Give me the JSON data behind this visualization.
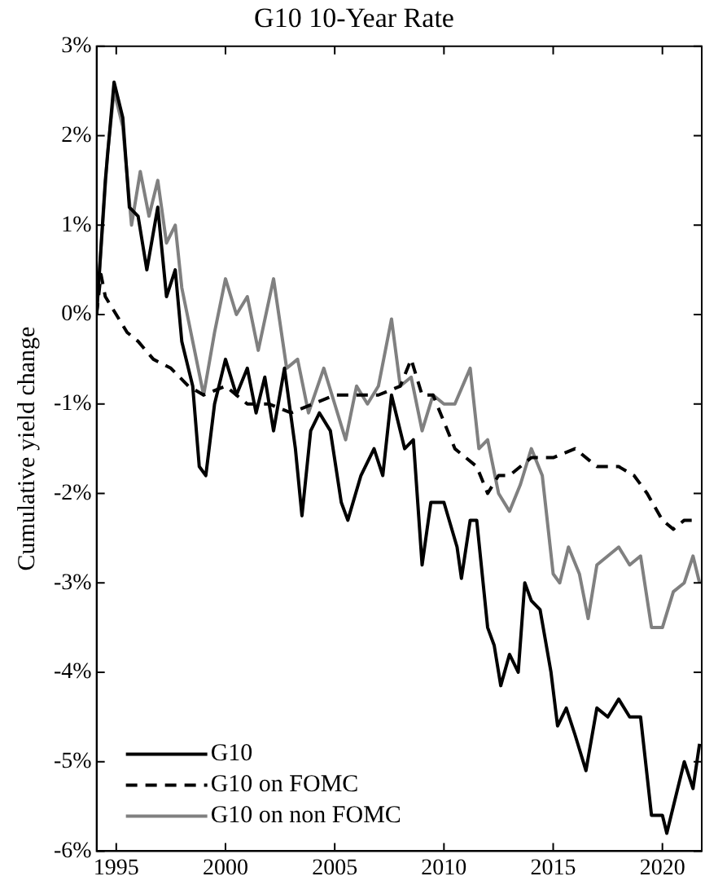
{
  "chart_data": {
    "type": "line",
    "title": "G10 10-Year Rate",
    "ylabel": "Cumulative yield change",
    "xlim": [
      1994.1,
      2021.8
    ],
    "xticks": [
      1995,
      2000,
      2005,
      2010,
      2015,
      2020
    ],
    "ylim": [
      -6,
      3
    ],
    "yticks": [
      {
        "value": -6,
        "label": "-6%"
      },
      {
        "value": -5,
        "label": "-5%"
      },
      {
        "value": -4,
        "label": "-4%"
      },
      {
        "value": -3,
        "label": "-3%"
      },
      {
        "value": -2,
        "label": "-2%"
      },
      {
        "value": -1,
        "label": "-1%"
      },
      {
        "value": 0,
        "label": "0%"
      },
      {
        "value": 1,
        "label": "1%"
      },
      {
        "value": 2,
        "label": "2%"
      },
      {
        "value": 3,
        "label": "3%"
      }
    ],
    "grid": false,
    "legend": "bottom left",
    "marker": "none",
    "series": [
      {
        "name": "G10",
        "color": "#000000",
        "line_style": "solid",
        "x": [
          1994.1,
          1994.5,
          1994.9,
          1995.3,
          1995.6,
          1996.0,
          1996.4,
          1996.9,
          1997.3,
          1997.7,
          1998.0,
          1998.5,
          1998.8,
          1999.1,
          1999.5,
          2000.0,
          2000.5,
          2001.0,
          2001.4,
          2001.8,
          2002.2,
          2002.7,
          2003.2,
          2003.5,
          2003.9,
          2004.3,
          2004.8,
          2005.3,
          2005.6,
          2006.2,
          2006.8,
          2007.2,
          2007.6,
          2008.2,
          2008.6,
          2009.0,
          2009.4,
          2010.0,
          2010.6,
          2010.8,
          2011.2,
          2011.5,
          2012.0,
          2012.3,
          2012.6,
          2013.0,
          2013.4,
          2013.7,
          2014.0,
          2014.4,
          2014.9,
          2015.2,
          2015.6,
          2016.0,
          2016.5,
          2017.0,
          2017.5,
          2018.0,
          2018.5,
          2019.0,
          2019.5,
          2020.0,
          2020.2,
          2020.5,
          2021.0,
          2021.4,
          2021.7
        ],
        "values": [
          0,
          1.5,
          2.6,
          2.2,
          1.2,
          1.1,
          0.5,
          1.2,
          0.2,
          0.5,
          -0.3,
          -0.8,
          -1.7,
          -1.8,
          -1.0,
          -0.5,
          -0.9,
          -0.6,
          -1.1,
          -0.7,
          -1.3,
          -0.6,
          -1.5,
          -2.25,
          -1.3,
          -1.1,
          -1.3,
          -2.1,
          -2.3,
          -1.8,
          -1.5,
          -1.8,
          -0.9,
          -1.5,
          -1.4,
          -2.8,
          -2.1,
          -2.1,
          -2.6,
          -2.95,
          -2.3,
          -2.3,
          -3.5,
          -3.7,
          -4.15,
          -3.8,
          -4.0,
          -3.0,
          -3.2,
          -3.3,
          -4.0,
          -4.6,
          -4.4,
          -4.7,
          -5.1,
          -4.4,
          -4.5,
          -4.3,
          -4.5,
          -4.5,
          -5.6,
          -5.6,
          -5.8,
          -5.5,
          -5.0,
          -5.3,
          -4.8
        ]
      },
      {
        "name": "G10 on FOMC",
        "color": "#000000",
        "line_style": "dashed",
        "x": [
          1994.1,
          1994.3,
          1994.5,
          1995.0,
          1995.5,
          1996.0,
          1996.7,
          1997.5,
          1998.3,
          1999.0,
          2000.0,
          2001.0,
          2002.0,
          2003.0,
          2004.0,
          2005.0,
          2006.0,
          2007.0,
          2008.0,
          2008.5,
          2009.0,
          2009.5,
          2010.0,
          2010.5,
          2011.0,
          2011.5,
          2012.0,
          2012.5,
          2013.0,
          2013.5,
          2014.0,
          2015.0,
          2016.0,
          2017.0,
          2018.0,
          2018.7,
          2019.3,
          2020.0,
          2020.5,
          2021.0,
          2021.7
        ],
        "values": [
          0,
          0.45,
          0.2,
          0.0,
          -0.2,
          -0.3,
          -0.5,
          -0.6,
          -0.8,
          -0.9,
          -0.8,
          -1.0,
          -1.0,
          -1.1,
          -1.0,
          -0.9,
          -0.9,
          -0.9,
          -0.8,
          -0.5,
          -0.9,
          -0.9,
          -1.2,
          -1.5,
          -1.6,
          -1.7,
          -2.0,
          -1.8,
          -1.8,
          -1.7,
          -1.6,
          -1.6,
          -1.5,
          -1.7,
          -1.7,
          -1.8,
          -2.0,
          -2.3,
          -2.4,
          -2.3,
          -2.3
        ]
      },
      {
        "name": "G10 on non FOMC",
        "color": "#808080",
        "line_style": "solid",
        "x": [
          1994.1,
          1994.6,
          1994.9,
          1995.3,
          1995.7,
          1996.1,
          1996.5,
          1996.9,
          1997.3,
          1997.7,
          1998.0,
          1998.5,
          1999.0,
          1999.5,
          2000.0,
          2000.5,
          2001.0,
          2001.5,
          2002.2,
          2002.8,
          2003.3,
          2003.8,
          2004.5,
          2005.0,
          2005.5,
          2006.0,
          2006.5,
          2007.0,
          2007.6,
          2008.0,
          2008.5,
          2009.0,
          2009.5,
          2010.0,
          2010.5,
          2011.2,
          2011.6,
          2012.0,
          2012.5,
          2013.0,
          2013.5,
          2014.0,
          2014.5,
          2015.0,
          2015.3,
          2015.7,
          2016.2,
          2016.6,
          2017.0,
          2017.5,
          2018.0,
          2018.5,
          2019.0,
          2019.5,
          2020.0,
          2020.5,
          2021.0,
          2021.4,
          2021.7
        ],
        "values": [
          0,
          1.8,
          2.5,
          2.1,
          1.0,
          1.6,
          1.1,
          1.5,
          0.8,
          1.0,
          0.3,
          -0.3,
          -0.9,
          -0.2,
          0.4,
          0.0,
          0.2,
          -0.4,
          0.4,
          -0.6,
          -0.5,
          -1.1,
          -0.6,
          -1.0,
          -1.4,
          -0.8,
          -1.0,
          -0.8,
          -0.05,
          -0.8,
          -0.7,
          -1.3,
          -0.9,
          -1.0,
          -1.0,
          -0.6,
          -1.5,
          -1.4,
          -2.0,
          -2.2,
          -1.9,
          -1.5,
          -1.8,
          -2.9,
          -3.0,
          -2.6,
          -2.9,
          -3.4,
          -2.8,
          -2.7,
          -2.6,
          -2.8,
          -2.7,
          -3.5,
          -3.5,
          -3.1,
          -3.0,
          -2.7,
          -3.0
        ]
      }
    ]
  }
}
